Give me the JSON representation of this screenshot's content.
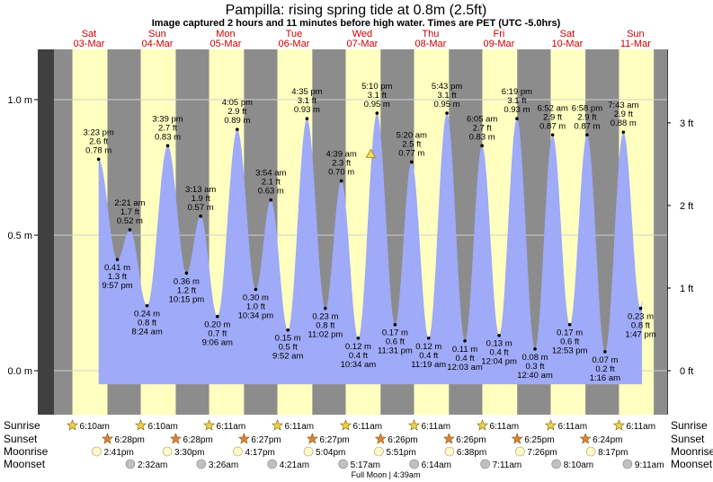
{
  "chart_data": {
    "type": "area",
    "title": "Pampilla: rising  spring tide at 0.8m (2.5ft)",
    "subtitle": "Image captured 2 hours and 11 minutes before high water. Times are PET (UTC -5.0hrs)",
    "y_left_ticks": [
      {
        "v": 0.0,
        "label": "0.0 m"
      },
      {
        "v": 0.5,
        "label": "0.5 m"
      },
      {
        "v": 1.0,
        "label": "1.0 m"
      }
    ],
    "y_right_ticks": [
      {
        "v": 0.0,
        "label": "0 ft"
      },
      {
        "v": 0.3048,
        "label": "1 ft"
      },
      {
        "v": 0.6096,
        "label": "2 ft"
      },
      {
        "v": 0.9144,
        "label": "3 ft"
      }
    ],
    "ylim": [
      -0.12,
      1.18
    ],
    "days": [
      {
        "name": "Sat",
        "date": "03-Mar",
        "start": 0,
        "sunrise": 6.17,
        "sunset": 18.47
      },
      {
        "name": "Sun",
        "date": "04-Mar",
        "start": 24,
        "sunrise": 6.17,
        "sunset": 18.47
      },
      {
        "name": "Mon",
        "date": "05-Mar",
        "start": 48,
        "sunrise": 6.18,
        "sunset": 18.45
      },
      {
        "name": "Tue",
        "date": "06-Mar",
        "start": 72,
        "sunrise": 6.18,
        "sunset": 18.45
      },
      {
        "name": "Wed",
        "date": "07-Mar",
        "start": 96,
        "sunrise": 6.18,
        "sunset": 18.43
      },
      {
        "name": "Thu",
        "date": "08-Mar",
        "start": 120,
        "sunrise": 6.18,
        "sunset": 18.43
      },
      {
        "name": "Fri",
        "date": "09-Mar",
        "start": 144,
        "sunrise": 6.18,
        "sunset": 18.42
      },
      {
        "name": "Sat",
        "date": "10-Mar",
        "start": 168,
        "sunrise": 6.18,
        "sunset": 18.4
      },
      {
        "name": "Sun",
        "date": "11-Mar",
        "start": 192,
        "sunrise": 6.18,
        "sunset": 18.4
      }
    ],
    "tides": [
      {
        "t": 15.38,
        "m": 0.78,
        "time": "3:23 pm",
        "ft": "2.6 ft",
        "mt": "0.78 m",
        "type": "high"
      },
      {
        "t": 21.95,
        "m": 0.41,
        "time": "9:57 pm",
        "ft": "1.3 ft",
        "mt": "0.41 m",
        "type": "low"
      },
      {
        "t": 26.35,
        "m": 0.52,
        "time": "2:21 am",
        "ft": "1.7 ft",
        "mt": "0.52 m",
        "type": "high"
      },
      {
        "t": 32.4,
        "m": 0.24,
        "time": "8:24 am",
        "ft": "0.8 ft",
        "mt": "0.24 m",
        "type": "low"
      },
      {
        "t": 39.65,
        "m": 0.83,
        "time": "3:39 pm",
        "ft": "2.7 ft",
        "mt": "0.83 m",
        "type": "high"
      },
      {
        "t": 46.25,
        "m": 0.36,
        "time": "10:15 pm",
        "ft": "1.2 ft",
        "mt": "0.36 m",
        "type": "low"
      },
      {
        "t": 51.22,
        "m": 0.57,
        "time": "3:13 am",
        "ft": "1.9 ft",
        "mt": "0.57 m",
        "type": "high"
      },
      {
        "t": 57.1,
        "m": 0.2,
        "time": "9:06 am",
        "ft": "0.7 ft",
        "mt": "0.20 m",
        "type": "low"
      },
      {
        "t": 64.08,
        "m": 0.89,
        "time": "4:05 pm",
        "ft": "2.9 ft",
        "mt": "0.89 m",
        "type": "high"
      },
      {
        "t": 70.57,
        "m": 0.3,
        "time": "10:34 pm",
        "ft": "1.0 ft",
        "mt": "0.30 m",
        "type": "low"
      },
      {
        "t": 75.9,
        "m": 0.63,
        "time": "3:54 am",
        "ft": "2.1 ft",
        "mt": "0.63 m",
        "type": "high"
      },
      {
        "t": 81.87,
        "m": 0.15,
        "time": "9:52 am",
        "ft": "0.5 ft",
        "mt": "0.15 m",
        "type": "low"
      },
      {
        "t": 88.58,
        "m": 0.93,
        "time": "4:35 pm",
        "ft": "3.1 ft",
        "mt": "0.93 m",
        "type": "high"
      },
      {
        "t": 95.03,
        "m": 0.23,
        "time": "11:02 pm",
        "ft": "0.8 ft",
        "mt": "0.23 m",
        "type": "low"
      },
      {
        "t": 100.65,
        "m": 0.7,
        "time": "4:39 am",
        "ft": "2.3 ft",
        "mt": "0.70 m",
        "type": "high"
      },
      {
        "t": 106.57,
        "m": 0.12,
        "time": "10:34 am",
        "ft": "0.4 ft",
        "mt": "0.12 m",
        "type": "low"
      },
      {
        "t": 113.17,
        "m": 0.95,
        "time": "5:10 pm",
        "ft": "3.1 ft",
        "mt": "0.95 m",
        "type": "high"
      },
      {
        "t": 119.52,
        "m": 0.17,
        "time": "11:31 pm",
        "ft": "0.6 ft",
        "mt": "0.17 m",
        "type": "low"
      },
      {
        "t": 125.33,
        "m": 0.77,
        "time": "5:20 am",
        "ft": "2.5 ft",
        "mt": "0.77 m",
        "type": "high"
      },
      {
        "t": 131.32,
        "m": 0.12,
        "time": "11:19 am",
        "ft": "0.4 ft",
        "mt": "0.12 m",
        "type": "low"
      },
      {
        "t": 137.72,
        "m": 0.95,
        "time": "5:43 pm",
        "ft": "3.1 ft",
        "mt": "0.95 m",
        "type": "high"
      },
      {
        "t": 144.05,
        "m": 0.11,
        "time": "12:03 am",
        "ft": "0.4 ft",
        "mt": "0.11 m",
        "type": "low"
      },
      {
        "t": 150.08,
        "m": 0.83,
        "time": "6:05 am",
        "ft": "2.7 ft",
        "mt": "0.83 m",
        "type": "high"
      },
      {
        "t": 156.07,
        "m": 0.13,
        "time": "12:04 pm",
        "ft": "0.4 ft",
        "mt": "0.13 m",
        "type": "low"
      },
      {
        "t": 162.32,
        "m": 0.93,
        "time": "6:19 pm",
        "ft": "3.1 ft",
        "mt": "0.93 m",
        "type": "high"
      },
      {
        "t": 168.67,
        "m": 0.08,
        "time": "12:40 am",
        "ft": "0.3 ft",
        "mt": "0.08 m",
        "type": "low"
      },
      {
        "t": 174.87,
        "m": 0.87,
        "time": "6:52 am",
        "ft": "2.9 ft",
        "mt": "0.87 m",
        "type": "high"
      },
      {
        "t": 180.88,
        "m": 0.17,
        "time": "12:53 pm",
        "ft": "0.6 ft",
        "mt": "0.17 m",
        "type": "low"
      },
      {
        "t": 186.97,
        "m": 0.87,
        "time": "6:58 pm",
        "ft": "2.9 ft",
        "mt": "0.87 m",
        "type": "high"
      },
      {
        "t": 193.27,
        "m": 0.07,
        "time": "1:16 am",
        "ft": "0.2 ft",
        "mt": "0.07 m",
        "type": "low"
      },
      {
        "t": 199.72,
        "m": 0.88,
        "time": "7:43 am",
        "ft": "2.9 ft",
        "mt": "0.88 m",
        "type": "high"
      },
      {
        "t": 205.78,
        "m": 0.23,
        "time": "1:47 pm",
        "ft": "0.8 ft",
        "mt": "0.23 m",
        "type": "low"
      }
    ],
    "now_t": 110.98,
    "now_m": 0.8,
    "t_start": 15.38,
    "t_end": 206.3,
    "astro": {
      "labels": {
        "sunrise": "Sunrise",
        "sunset": "Sunset",
        "moonrise": "Moonrise",
        "moonset": "Moonset"
      },
      "sunrise": [
        {
          "t": 6.17,
          "label": "6:10am"
        },
        {
          "t": 30.17,
          "label": "6:10am"
        },
        {
          "t": 54.18,
          "label": "6:11am"
        },
        {
          "t": 78.18,
          "label": "6:11am"
        },
        {
          "t": 102.18,
          "label": "6:11am"
        },
        {
          "t": 126.18,
          "label": "6:11am"
        },
        {
          "t": 150.18,
          "label": "6:11am"
        },
        {
          "t": 174.18,
          "label": "6:11am"
        },
        {
          "t": 198.18,
          "label": "6:11am"
        }
      ],
      "sunset": [
        {
          "t": 18.47,
          "label": "6:28pm"
        },
        {
          "t": 42.47,
          "label": "6:28pm"
        },
        {
          "t": 66.45,
          "label": "6:27pm"
        },
        {
          "t": 90.45,
          "label": "6:27pm"
        },
        {
          "t": 114.43,
          "label": "6:26pm"
        },
        {
          "t": 138.43,
          "label": "6:26pm"
        },
        {
          "t": 162.42,
          "label": "6:25pm"
        },
        {
          "t": 186.4,
          "label": "6:24pm"
        }
      ],
      "moonrise": [
        {
          "t": 14.68,
          "label": "2:41pm"
        },
        {
          "t": 39.5,
          "label": "3:30pm"
        },
        {
          "t": 64.28,
          "label": "4:17pm"
        },
        {
          "t": 89.07,
          "label": "5:04pm"
        },
        {
          "t": 113.85,
          "label": "5:51pm"
        },
        {
          "t": 138.63,
          "label": "6:38pm"
        },
        {
          "t": 163.43,
          "label": "7:26pm"
        },
        {
          "t": 188.28,
          "label": "8:17pm"
        }
      ],
      "moonset": [
        {
          "t": 26.53,
          "label": "2:32am"
        },
        {
          "t": 51.43,
          "label": "3:26am"
        },
        {
          "t": 76.35,
          "label": "4:21am"
        },
        {
          "t": 101.28,
          "label": "5:17am"
        },
        {
          "t": 126.23,
          "label": "6:14am"
        },
        {
          "t": 151.18,
          "label": "7:11am"
        },
        {
          "t": 176.17,
          "label": "8:10am"
        },
        {
          "t": 201.18,
          "label": "9:11am"
        }
      ],
      "full_moon": {
        "t": 100.65,
        "label": "Full Moon | 4:39am"
      }
    },
    "colors": {
      "day": "#ffffc0",
      "night": "#8c8c8c",
      "water": "#9faaf8",
      "frame": "#404040",
      "grid": "#d0d0d0",
      "daytext": "#cc0000",
      "sun": "#e8d250",
      "sunset_star": "#e08040",
      "moonrise": "#fff8c8",
      "moonset": "#c0c0c0",
      "marker": "#f0e060"
    }
  }
}
